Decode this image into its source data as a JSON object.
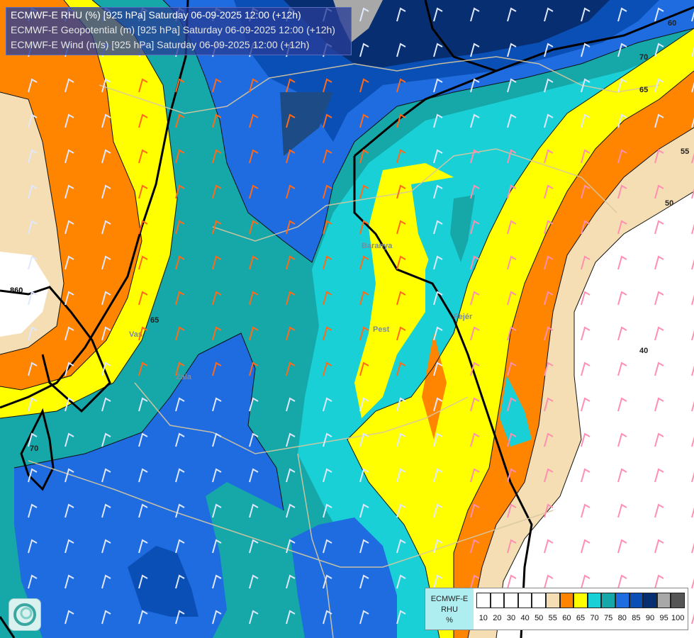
{
  "title": {
    "line1": "ECMWF-E RHU (%) [925 hPa] Saturday 06-09-2025 12:00 (+12h)",
    "line2": "ECMWF-E Geopotential (m) [925 hPa] Saturday 06-09-2025 12:00 (+12h)",
    "line3": "ECMWF-E Wind (m/s) [925 hPa] Saturday 06-09-2025 12:00 (+12h)"
  },
  "contour_labels": {
    "geo_860": "860",
    "rh_60": "60",
    "rh_70_top": "70",
    "rh_65_top": "65",
    "rh_55": "55",
    "rh_50": "50",
    "rh_40": "40",
    "rh_65_left": "65",
    "rh_70_left": "70"
  },
  "places": {
    "pest": "Pest",
    "vas": "Vas",
    "zala": "Zala",
    "baranya": "Baranya",
    "fejer": "Fejér"
  },
  "legend": {
    "title_line1": "ECMWF-E",
    "title_line2": "RHU",
    "title_line3": "%",
    "ticks": [
      "10",
      "20",
      "30",
      "40",
      "50",
      "55",
      "60",
      "65",
      "70",
      "75",
      "80",
      "85",
      "90",
      "95",
      "100"
    ],
    "colors": [
      "#ffffff",
      "#ffffff",
      "#ffffff",
      "#ffffff",
      "#ffffff",
      "#f5deb3",
      "#ff8400",
      "#ffff00",
      "#19d0d6",
      "#16a7a8",
      "#1e6ce0",
      "#0a4fb5",
      "#062e70",
      "#a8a8a8",
      "#555555"
    ]
  },
  "fill_colors": {
    "rh_40_50": "#ffffff",
    "rh_50_55": "#f5deb3",
    "rh_55_60": "#ff8400",
    "rh_60_65": "#ffff00",
    "rh_65_70": "#19d0d6",
    "rh_70_75": "#16a7a8",
    "rh_75_80": "#1e6ce0",
    "rh_80_85": "#0a4fb5",
    "rh_85_90": "#062e70",
    "rh_90_95": "#a8a8a8"
  }
}
